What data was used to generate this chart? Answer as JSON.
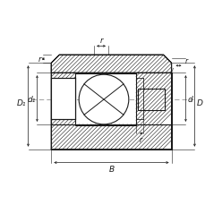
{
  "bg_color": "#ffffff",
  "line_color": "#1a1a1a",
  "dim_color": "#1a1a1a",
  "dash_color": "#888888",
  "fig_w": 2.3,
  "fig_h": 2.3,
  "dpi": 100,
  "labels": {
    "r1": "r",
    "r2": "r",
    "r3": "r",
    "r4": "r",
    "B": "B",
    "d": "d",
    "D": "D",
    "d1": "d₁",
    "D1": "D₁"
  }
}
